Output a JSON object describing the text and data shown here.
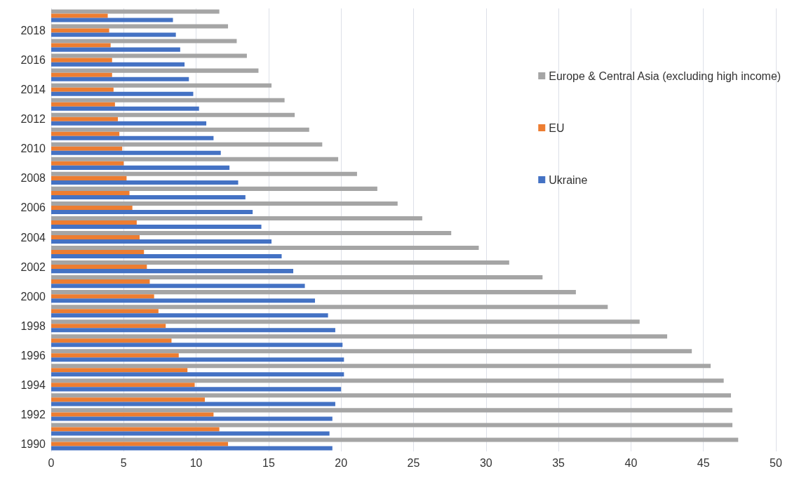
{
  "chart_data": {
    "type": "bar",
    "orientation": "horizontal",
    "categories": [
      null,
      "2018",
      null,
      "2016",
      null,
      "2014",
      null,
      "2012",
      null,
      "2010",
      null,
      "2008",
      null,
      "2006",
      null,
      "2004",
      null,
      "2002",
      null,
      "2000",
      null,
      "1998",
      null,
      "1996",
      null,
      "1994",
      null,
      "1992",
      null,
      "1990"
    ],
    "series": [
      {
        "name": "Europe & Central Asia (excluding high income)",
        "color": "#a5a5a5",
        "values": [
          11.6,
          12.2,
          12.8,
          13.5,
          14.3,
          15.2,
          16.1,
          16.8,
          17.8,
          18.7,
          19.8,
          21.1,
          22.5,
          23.9,
          25.6,
          27.6,
          29.5,
          31.6,
          33.9,
          36.2,
          38.4,
          40.6,
          42.5,
          44.2,
          45.5,
          46.4,
          46.9,
          47.0,
          47.0,
          47.4
        ]
      },
      {
        "name": "EU",
        "color": "#ed7d31",
        "values": [
          3.9,
          4.0,
          4.1,
          4.2,
          4.2,
          4.3,
          4.4,
          4.6,
          4.7,
          4.9,
          5.0,
          5.2,
          5.4,
          5.6,
          5.9,
          6.1,
          6.4,
          6.6,
          6.8,
          7.1,
          7.4,
          7.9,
          8.3,
          8.8,
          9.4,
          9.9,
          10.6,
          11.2,
          11.6,
          12.2
        ]
      },
      {
        "name": "Ukraine",
        "color": "#4472c4",
        "values": [
          8.4,
          8.6,
          8.9,
          9.2,
          9.5,
          9.8,
          10.2,
          10.7,
          11.2,
          11.7,
          12.3,
          12.9,
          13.4,
          13.9,
          14.5,
          15.2,
          15.9,
          16.7,
          17.5,
          18.2,
          19.1,
          19.6,
          20.1,
          20.2,
          20.2,
          20.0,
          19.6,
          19.4,
          19.2,
          19.4
        ]
      }
    ],
    "xlim": [
      0,
      50
    ],
    "xticks": [
      0,
      5,
      10,
      15,
      20,
      25,
      30,
      35,
      40,
      45,
      50
    ],
    "grid": "x",
    "legend": "right"
  }
}
